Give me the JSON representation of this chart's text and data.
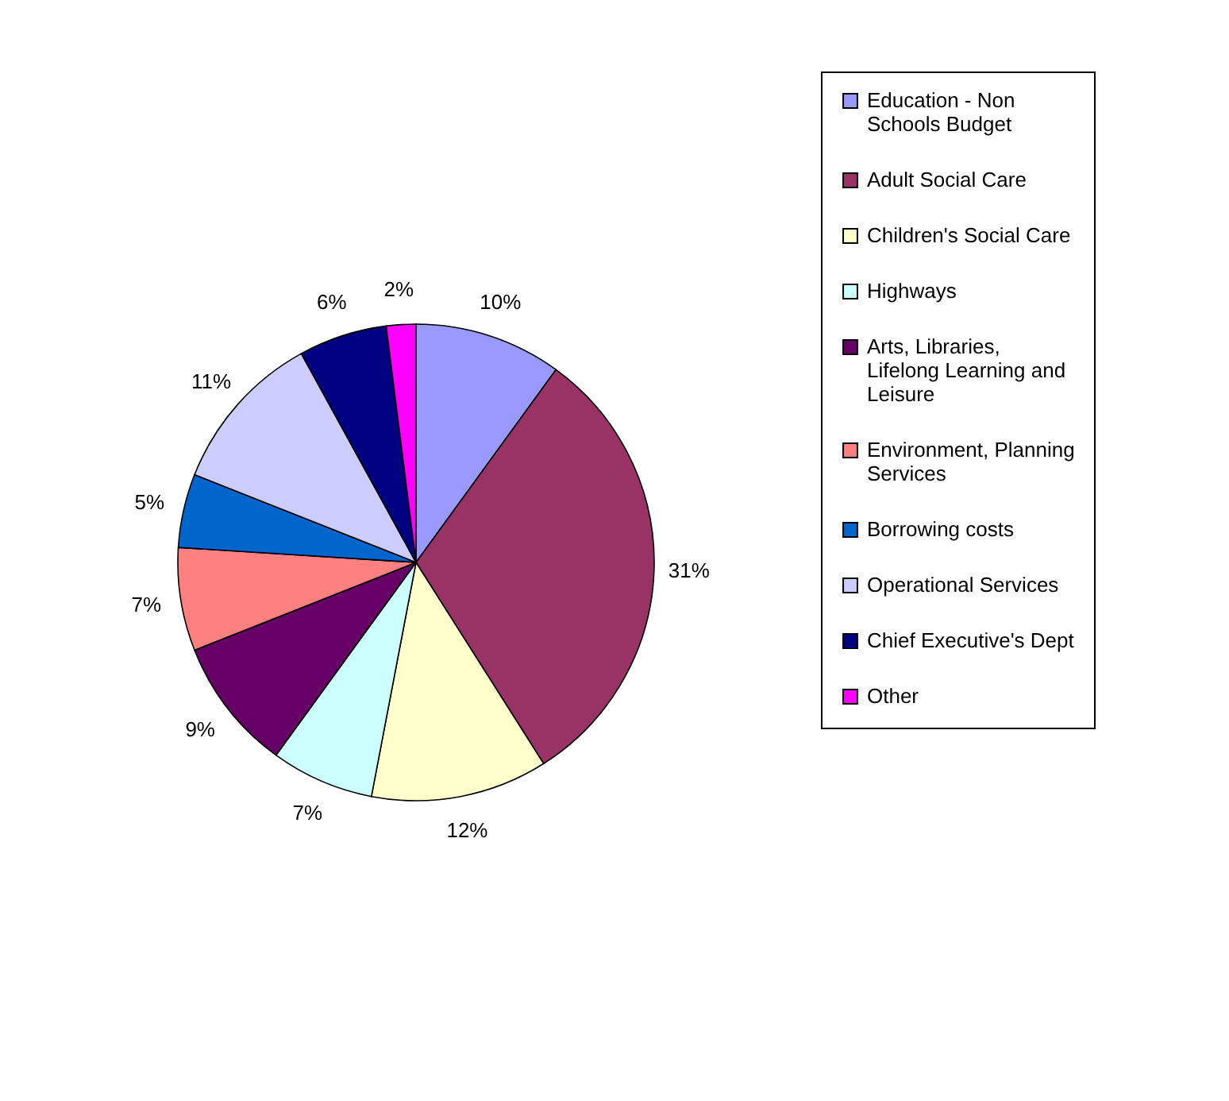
{
  "chart_data": {
    "type": "pie",
    "categories": [
      "Education - Non Schools Budget",
      "Adult Social Care",
      "Children's Social Care",
      "Highways",
      "Arts, Libraries, Lifelong Learning and Leisure",
      "Environment, Planning Services",
      "Borrowing costs",
      "Operational Services",
      "Chief Executive's Dept",
      "Other"
    ],
    "values": [
      10,
      31,
      12,
      7,
      9,
      7,
      5,
      11,
      6,
      2
    ],
    "colors": [
      "#9999ff",
      "#993366",
      "#ffffcc",
      "#ccffff",
      "#660066",
      "#ff8080",
      "#0066cc",
      "#ccccff",
      "#000080",
      "#ff00ff"
    ],
    "value_labels": [
      "10%",
      "31%",
      "12%",
      "7%",
      "9%",
      "7%",
      "5%",
      "11%",
      "6%",
      "2%"
    ],
    "legend": "right"
  }
}
